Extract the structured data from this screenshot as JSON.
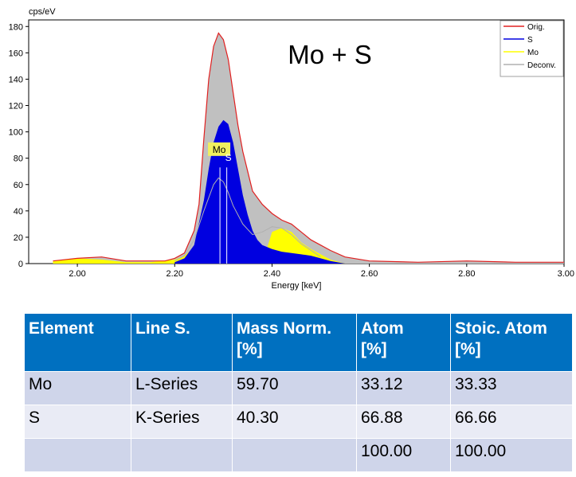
{
  "chart_data": {
    "type": "area",
    "title": "Mo + S",
    "xlabel": "Energy [keV]",
    "ylabel": "cps/eV",
    "xlim": [
      1.9,
      3.0
    ],
    "ylim": [
      0,
      185
    ],
    "x_ticks": [
      "2.00",
      "2.20",
      "2.40",
      "2.60",
      "2.80",
      "3.00"
    ],
    "y_ticks": [
      "0",
      "20",
      "40",
      "60",
      "80",
      "100",
      "120",
      "140",
      "160",
      "180"
    ],
    "legend": {
      "position": "top-right",
      "entries": [
        "Orig.",
        "S",
        "Mo",
        "Deconv."
      ]
    },
    "colors": {
      "orig": "#e02020",
      "deconv_fill": "#c0c0c0",
      "s": "#0000e0",
      "mo": "#ffff00",
      "deconv_line": "#b0b0b0",
      "marker": "#f0f060"
    },
    "series": [
      {
        "name": "Orig.",
        "x": [
          1.95,
          2.0,
          2.05,
          2.1,
          2.15,
          2.18,
          2.2,
          2.22,
          2.24,
          2.25,
          2.26,
          2.27,
          2.28,
          2.29,
          2.3,
          2.31,
          2.32,
          2.33,
          2.34,
          2.35,
          2.36,
          2.38,
          2.4,
          2.42,
          2.44,
          2.46,
          2.48,
          2.5,
          2.52,
          2.55,
          2.6,
          2.7,
          2.8,
          2.9,
          3.0
        ],
        "values": [
          2,
          4,
          5,
          2,
          2,
          2,
          4,
          8,
          25,
          45,
          95,
          140,
          165,
          175,
          170,
          155,
          130,
          105,
          85,
          70,
          55,
          45,
          38,
          33,
          30,
          24,
          18,
          14,
          10,
          5,
          2,
          1,
          2,
          1,
          1
        ]
      },
      {
        "name": "S",
        "x": [
          2.2,
          2.22,
          2.24,
          2.26,
          2.27,
          2.28,
          2.29,
          2.3,
          2.31,
          2.32,
          2.33,
          2.34,
          2.35,
          2.36,
          2.37,
          2.38,
          2.4,
          2.42,
          2.44,
          2.46,
          2.48,
          2.5,
          2.52,
          2.55
        ],
        "values": [
          1,
          4,
          14,
          48,
          72,
          92,
          104,
          109,
          106,
          92,
          72,
          52,
          37,
          25,
          18,
          14,
          11,
          9,
          8,
          7,
          6,
          4,
          2,
          0
        ]
      },
      {
        "name": "Mo",
        "x": [
          1.95,
          2.0,
          2.05,
          2.1,
          2.15,
          2.2,
          2.22,
          2.24,
          2.26,
          2.28,
          2.3,
          2.33,
          2.36,
          2.38,
          2.39,
          2.4,
          2.42,
          2.44,
          2.46,
          2.48,
          2.5,
          2.52,
          2.55
        ],
        "values": [
          2,
          4,
          3,
          1,
          1,
          3,
          6,
          12,
          14,
          13,
          11,
          9,
          6,
          3,
          12,
          24,
          27,
          24,
          16,
          11,
          7,
          3,
          0
        ]
      },
      {
        "name": "Deconv.",
        "x": [
          2.2,
          2.22,
          2.24,
          2.26,
          2.28,
          2.29,
          2.3,
          2.31,
          2.32,
          2.34,
          2.36,
          2.38,
          2.4,
          2.42,
          2.44,
          2.46,
          2.5
        ],
        "values": [
          2,
          6,
          18,
          40,
          60,
          65,
          62,
          54,
          44,
          30,
          22,
          24,
          28,
          27,
          22,
          15,
          5
        ]
      }
    ],
    "markers": [
      {
        "label": "Mo",
        "x": 2.293
      },
      {
        "label": "S",
        "x": 2.307
      }
    ]
  },
  "table": {
    "headers": [
      {
        "line1": "Element",
        "line2": ""
      },
      {
        "line1": "Line S.",
        "line2": ""
      },
      {
        "line1": "Mass Norm.",
        "line2": "[%]"
      },
      {
        "line1": "Atom",
        "line2": "[%]"
      },
      {
        "line1": "Stoic. Atom",
        "line2": "[%]"
      }
    ],
    "rows": [
      [
        "Mo",
        "L-Series",
        "59.70",
        "33.12",
        "33.33"
      ],
      [
        "S",
        "K-Series",
        "40.30",
        "66.88",
        "66.66"
      ],
      [
        "",
        "",
        "",
        "100.00",
        "100.00"
      ]
    ]
  }
}
